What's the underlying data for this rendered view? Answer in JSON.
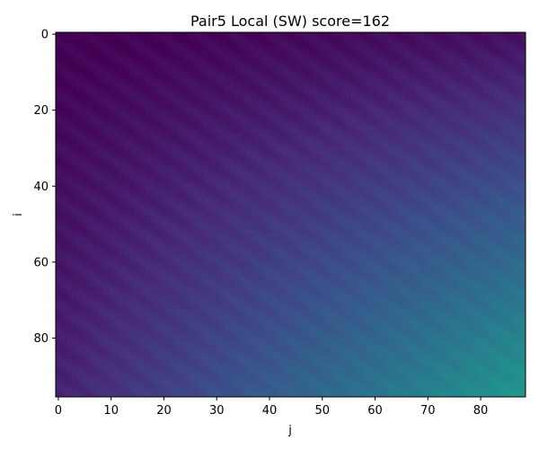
{
  "chart_data": {
    "type": "heatmap",
    "title": "Pair5 Local (SW) score=162",
    "xlabel": "j",
    "ylabel": "i",
    "rows": 96,
    "cols": 89,
    "xlim": [
      -0.5,
      88.5
    ],
    "ylim": [
      95.5,
      -0.5
    ],
    "x_ticks": [
      0,
      10,
      20,
      30,
      40,
      50,
      60,
      70,
      80
    ],
    "y_ticks": [
      0,
      20,
      40,
      60,
      80
    ],
    "colormap": "viridis",
    "value_range": [
      0,
      162
    ],
    "max_score": 162,
    "colorbar": false,
    "grid": false
  }
}
